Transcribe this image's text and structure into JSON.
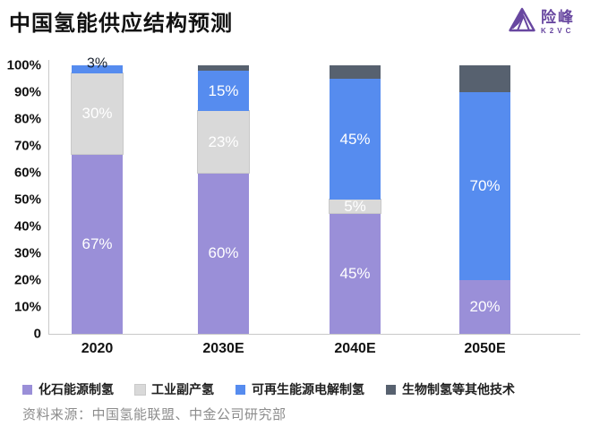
{
  "header": {
    "title": "中国氢能供应结构预测"
  },
  "logo": {
    "brand": "险峰",
    "sub_brand": "K2VC",
    "color": "#6847A0"
  },
  "chart_data": {
    "type": "bar",
    "stacked": true,
    "unit": "%",
    "title": "中国氢能供应结构预测",
    "categories": [
      "2020",
      "2030E",
      "2040E",
      "2050E"
    ],
    "series": [
      {
        "name": "化石能源制氢",
        "color": "#9A8FD8",
        "values": [
          67,
          60,
          45,
          20
        ],
        "labels": [
          "67%",
          "60%",
          "45%",
          "20%"
        ]
      },
      {
        "name": "工业副产氢",
        "color": "#D9D9D9",
        "border": "#C9C9C9",
        "values": [
          30,
          23,
          5,
          0
        ],
        "labels": [
          "30%",
          "23%",
          "5%",
          ""
        ]
      },
      {
        "name": "可再生能源电解制氢",
        "color": "#568CEF",
        "values": [
          3,
          15,
          45,
          70
        ],
        "labels": [
          "3%",
          "15%",
          "45%",
          "70%"
        ],
        "label_outside": [
          true,
          false,
          false,
          false
        ]
      },
      {
        "name": "生物制氢等其他技术",
        "color": "#57616F",
        "values": [
          0,
          2,
          5,
          10
        ],
        "labels": [
          "",
          "",
          "",
          ""
        ]
      }
    ],
    "ylim": [
      0,
      100
    ],
    "yticks": [
      "100%",
      "90%",
      "80%",
      "70%",
      "60%",
      "50%",
      "40%",
      "30%",
      "20%",
      "10%",
      "0"
    ],
    "grid": false,
    "legend_position": "bottom"
  },
  "source": "资料来源：中国氢能联盟、中金公司研究部"
}
